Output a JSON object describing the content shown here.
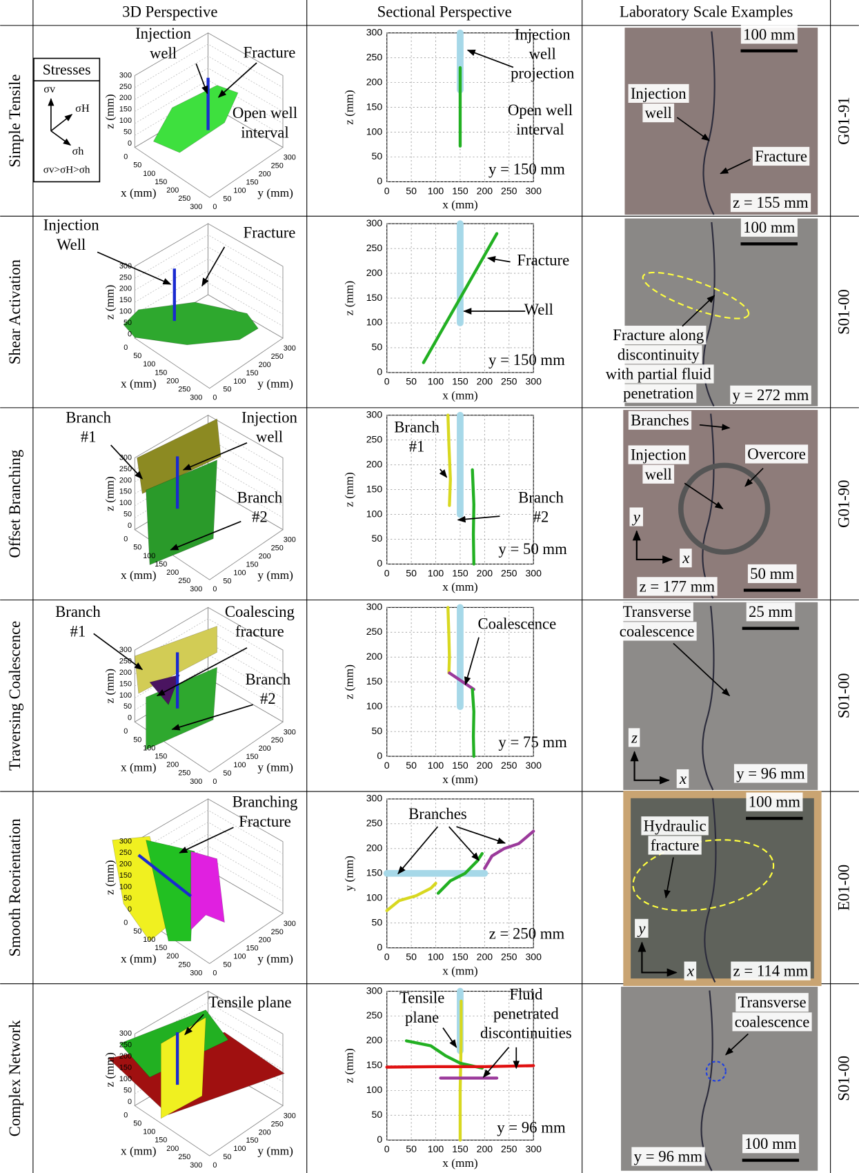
{
  "header": {
    "columns": [
      "3D Perspective",
      "Sectional Perspective",
      "Laboratory Scale Examples"
    ]
  },
  "stresses": {
    "title": "Stresses",
    "sigma_v": "σv",
    "sigma_H": "σH",
    "sigma_h": "σh",
    "relation": "σv>σH>σh"
  },
  "rows": [
    {
      "label": "Simple Tensile",
      "sample": "G01-91",
      "perspective_3d": {
        "annotations": [
          [
            "Injection",
            "well"
          ],
          [
            "Fracture"
          ],
          [
            "Open well",
            "interval"
          ]
        ],
        "x_label": "x (mm)",
        "y_label": "y (mm)",
        "z_label": "z (mm)",
        "xticks": [
          0,
          50,
          100,
          150,
          200,
          250,
          300
        ],
        "yticks": [
          0,
          50,
          100,
          150,
          200,
          250,
          300
        ],
        "zticks": [
          0,
          50,
          100,
          150,
          200,
          250,
          300
        ]
      },
      "section": {
        "type": "line",
        "x_label": "x (mm)",
        "y_label": "z (mm)",
        "xlim": [
          0,
          300
        ],
        "ylim": [
          0,
          300
        ],
        "xticks": [
          0,
          50,
          100,
          150,
          200,
          250,
          300
        ],
        "yticks": [
          0,
          50,
          100,
          150,
          200,
          250,
          300
        ],
        "grid": true,
        "plane": "y = 150 mm",
        "annotations": [
          [
            "Injection",
            "well",
            "projection"
          ],
          [
            "Open well",
            "interval"
          ]
        ],
        "series": [
          {
            "color": "#a6d8e8",
            "x": [
              150,
              150
            ],
            "y": [
              300,
              185
            ]
          },
          {
            "color": "#22b022",
            "x": [
              150,
              150
            ],
            "y": [
              230,
              72
            ]
          }
        ]
      },
      "lab": {
        "scale": "100 mm",
        "plane": "z = 155 mm",
        "annotations": [
          [
            "Injection",
            "well"
          ],
          [
            "Fracture"
          ]
        ]
      }
    },
    {
      "label": "Shear Activation",
      "sample": "S01-00",
      "perspective_3d": {
        "annotations": [
          [
            "Injection",
            "Well"
          ],
          [
            "Fracture"
          ]
        ],
        "x_label": "x (mm)",
        "y_label": "y (mm)",
        "z_label": "z (mm)",
        "xticks": [
          0,
          50,
          100,
          150,
          200,
          250,
          300
        ],
        "yticks": [
          0,
          50,
          100,
          150,
          200,
          250,
          300
        ],
        "zticks": [
          0,
          50,
          100,
          150,
          200,
          250,
          300
        ]
      },
      "section": {
        "type": "line",
        "x_label": "x (mm)",
        "y_label": "z (mm)",
        "xlim": [
          0,
          300
        ],
        "ylim": [
          0,
          300
        ],
        "xticks": [
          0,
          50,
          100,
          150,
          200,
          250,
          300
        ],
        "yticks": [
          0,
          50,
          100,
          150,
          200,
          250,
          300
        ],
        "grid": true,
        "plane": "y = 150 mm",
        "annotations": [
          [
            "Fracture"
          ],
          [
            "Well"
          ]
        ],
        "series": [
          {
            "color": "#a6d8e8",
            "x": [
              150,
              150
            ],
            "y": [
              300,
              100
            ]
          },
          {
            "color": "#22b022",
            "x": [
              75,
              225
            ],
            "y": [
              20,
              280
            ]
          }
        ]
      },
      "lab": {
        "scale": "100 mm",
        "plane": "y = 272 mm",
        "annotations": [
          [
            "Fracture along",
            "discontinuity",
            "with partial fluid",
            "penetration"
          ]
        ]
      }
    },
    {
      "label": "Offset Branching",
      "sample": "G01-90",
      "perspective_3d": {
        "annotations": [
          [
            "Branch",
            "#1"
          ],
          [
            "Injection",
            "well"
          ],
          [
            "Branch",
            "#2"
          ]
        ],
        "x_label": "x (mm)",
        "y_label": "y (mm)",
        "z_label": "z (mm)",
        "xticks": [
          0,
          50,
          100,
          150,
          200,
          250,
          300
        ],
        "yticks": [
          0,
          50,
          100,
          150,
          200,
          250,
          300
        ],
        "zticks": [
          0,
          50,
          100,
          150,
          200,
          250,
          300
        ]
      },
      "section": {
        "type": "line",
        "x_label": "x (mm)",
        "y_label": "z (mm)",
        "xlim": [
          0,
          300
        ],
        "ylim": [
          0,
          300
        ],
        "xticks": [
          0,
          50,
          100,
          150,
          200,
          250,
          300
        ],
        "yticks": [
          0,
          50,
          100,
          150,
          200,
          250,
          300
        ],
        "grid": true,
        "plane": "y = 50 mm",
        "annotations": [
          [
            "Branch",
            "#1"
          ],
          [
            "Branch",
            "#2"
          ]
        ],
        "series": [
          {
            "color": "#a6d8e8",
            "x": [
              150,
              150
            ],
            "y": [
              300,
              100
            ]
          },
          {
            "color": "#d8d820",
            "x": [
              125,
              127,
              130,
              128
            ],
            "y": [
              300,
              240,
              170,
              118
            ]
          },
          {
            "color": "#22b022",
            "x": [
              175,
              178,
              177,
              178
            ],
            "y": [
              190,
              120,
              60,
              0
            ]
          }
        ]
      },
      "lab": {
        "scale": "50 mm",
        "plane": "z = 177 mm",
        "annotations": [
          [
            "Branches"
          ],
          [
            "Injection",
            "well"
          ],
          [
            "Overcore"
          ]
        ],
        "axes": [
          "y",
          "x"
        ]
      }
    },
    {
      "label": "Traversing Coalescence",
      "sample": "S01-00",
      "perspective_3d": {
        "annotations": [
          [
            "Branch",
            "#1"
          ],
          [
            "Coalescing",
            "fracture"
          ],
          [
            "Branch",
            "#2"
          ]
        ],
        "x_label": "x (mm)",
        "y_label": "y (mm)",
        "z_label": "z (mm)",
        "xticks": [
          0,
          50,
          100,
          150,
          200,
          250,
          300
        ],
        "yticks": [
          0,
          50,
          100,
          150,
          200,
          250,
          300
        ],
        "zticks": [
          0,
          50,
          100,
          150,
          200,
          250,
          300
        ]
      },
      "section": {
        "type": "line",
        "x_label": "x (mm)",
        "y_label": "z (mm)",
        "xlim": [
          0,
          300
        ],
        "ylim": [
          0,
          300
        ],
        "xticks": [
          0,
          50,
          100,
          150,
          200,
          250,
          300
        ],
        "yticks": [
          0,
          50,
          100,
          150,
          200,
          250,
          300
        ],
        "grid": true,
        "plane": "y = 75 mm",
        "annotations": [
          [
            "Coalescence"
          ]
        ],
        "series": [
          {
            "color": "#a6d8e8",
            "x": [
              150,
              150
            ],
            "y": [
              300,
              100
            ]
          },
          {
            "color": "#d8d820",
            "x": [
              125,
              127,
              128,
              127
            ],
            "y": [
              300,
              240,
              200,
              168
            ]
          },
          {
            "color": "#9b3a9b",
            "x": [
              128,
              178
            ],
            "y": [
              168,
              135
            ]
          },
          {
            "color": "#22b022",
            "x": [
              175,
              178,
              177,
              178
            ],
            "y": [
              135,
              90,
              40,
              0
            ]
          }
        ]
      },
      "lab": {
        "scale": "25 mm",
        "plane": "y = 96 mm",
        "annotations": [
          [
            "Transverse",
            "coalescence"
          ]
        ],
        "axes": [
          "z",
          "x"
        ]
      }
    },
    {
      "label": "Smooth Reorientation",
      "sample": "E01-00",
      "perspective_3d": {
        "annotations": [
          [
            "Branching",
            "Fracture"
          ]
        ],
        "x_label": "x (mm)",
        "y_label": "y (mm)",
        "z_label": "z (mm)",
        "xticks": [
          0,
          50,
          100,
          150,
          200,
          250,
          300
        ],
        "yticks": [
          0,
          50,
          100,
          150,
          200,
          250,
          300
        ],
        "zticks": [
          0,
          50,
          100,
          150,
          200,
          250,
          300
        ]
      },
      "section": {
        "type": "line",
        "x_label": "x (mm)",
        "y_label": "y (mm)",
        "xlim": [
          0,
          300
        ],
        "ylim": [
          0,
          300
        ],
        "xticks": [
          0,
          50,
          100,
          150,
          200,
          250,
          300
        ],
        "yticks": [
          0,
          50,
          100,
          150,
          200,
          250,
          300
        ],
        "grid": true,
        "plane": "z = 250 mm",
        "annotations": [
          [
            "Branches"
          ]
        ],
        "series": [
          {
            "color": "#a6d8e8",
            "x": [
              0,
              200
            ],
            "y": [
              150,
              150
            ]
          },
          {
            "color": "#d8d820",
            "x": [
              0,
              25,
              60,
              90,
              100
            ],
            "y": [
              75,
              95,
              105,
              120,
              130
            ]
          },
          {
            "color": "#22b022",
            "x": [
              105,
              130,
              160,
              185,
              195
            ],
            "y": [
              110,
              135,
              150,
              175,
              190
            ]
          },
          {
            "color": "#9b3a9b",
            "x": [
              200,
              215,
              240,
              270,
              300
            ],
            "y": [
              160,
              185,
              200,
              210,
              235
            ]
          }
        ]
      },
      "lab": {
        "scale": "100 mm",
        "plane": "z = 114 mm",
        "annotations": [
          [
            "Hydraulic",
            "fracture"
          ]
        ],
        "axes": [
          "y",
          "x"
        ]
      }
    },
    {
      "label": "Complex Network",
      "sample": "S01-00",
      "perspective_3d": {
        "annotations": [
          [
            "Tensile plane"
          ]
        ],
        "x_label": "x (mm)",
        "y_label": "y (mm)",
        "z_label": "z (mm)",
        "xticks": [
          0,
          50,
          100,
          150,
          200,
          250,
          300
        ],
        "yticks": [
          0,
          50,
          100,
          150,
          200,
          250,
          300
        ],
        "zticks": [
          0,
          50,
          100,
          150,
          200,
          250,
          300
        ]
      },
      "section": {
        "type": "line",
        "x_label": "x (mm)",
        "y_label": "z (mm)",
        "xlim": [
          0,
          300
        ],
        "ylim": [
          0,
          300
        ],
        "xticks": [
          0,
          50,
          100,
          150,
          200,
          250,
          300
        ],
        "yticks": [
          0,
          50,
          100,
          150,
          200,
          250,
          300
        ],
        "grid": true,
        "plane": "y = 96 mm",
        "annotations": [
          [
            "Tensile",
            "plane"
          ],
          [
            "Fluid",
            "penetrated",
            "discontinuities"
          ]
        ],
        "series": [
          {
            "color": "#a6d8e8",
            "x": [
              150,
              150
            ],
            "y": [
              300,
              180
            ]
          },
          {
            "color": "#d8d820",
            "x": [
              152,
              152,
              150,
              150
            ],
            "y": [
              280,
              200,
              100,
              0
            ]
          },
          {
            "color": "#22b022",
            "x": [
              40,
              90,
              120,
              150,
              195
            ],
            "y": [
              200,
              190,
              170,
              155,
              145
            ]
          },
          {
            "color": "#e01010",
            "x": [
              0,
              100,
              200,
              300
            ],
            "y": [
              147,
              148,
              148,
              150
            ]
          },
          {
            "color": "#9b3a9b",
            "x": [
              110,
              225
            ],
            "y": [
              125,
              125
            ]
          }
        ]
      },
      "lab": {
        "scale": "100 mm",
        "plane": "y = 96 mm",
        "annotations": [
          [
            "Transverse",
            "coalescence"
          ]
        ]
      }
    }
  ]
}
